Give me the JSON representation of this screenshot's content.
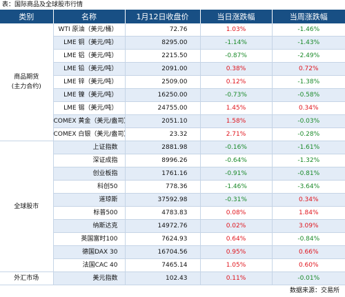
{
  "caption": "表：国际商品及全球股市行情",
  "headers": [
    "类别",
    "名称",
    "1月12日收盘价",
    "当日涨跌幅",
    "当周涨跌幅"
  ],
  "groups": [
    {
      "category": "商品期货\n(主力合约)",
      "rows": [
        {
          "name": "WTI 原油（美元/桶）",
          "price": "72.76",
          "day": "1.03%",
          "week": "-1.46%"
        },
        {
          "name": "LME 铜（美元/吨）",
          "price": "8295.00",
          "day": "-1.14%",
          "week": "-1.43%"
        },
        {
          "name": "LME 铝（美元/吨）",
          "price": "2215.50",
          "day": "-0.87%",
          "week": "-2.49%"
        },
        {
          "name": "LME 铅（美元/吨）",
          "price": "2091.00",
          "day": "0.38%",
          "week": "0.72%"
        },
        {
          "name": "LME 锌（美元/吨）",
          "price": "2509.00",
          "day": "0.12%",
          "week": "-1.38%"
        },
        {
          "name": "LME 镍（美元/吨）",
          "price": "16250.00",
          "day": "-0.73%",
          "week": "-0.58%"
        },
        {
          "name": "LME 锡（美元/吨）",
          "price": "24755.00",
          "day": "1.45%",
          "week": "0.34%"
        },
        {
          "name": "COMEX 黄金（美元/盎司）",
          "price": "2051.10",
          "day": "1.58%",
          "week": "-0.03%"
        },
        {
          "name": "COMEX 白银（美元/盎司）",
          "price": "23.32",
          "day": "2.71%",
          "week": "-0.28%"
        }
      ]
    },
    {
      "category": "全球股市",
      "rows": [
        {
          "name": "上证指数",
          "price": "2881.98",
          "day": "-0.16%",
          "week": "-1.61%"
        },
        {
          "name": "深证成指",
          "price": "8996.26",
          "day": "-0.64%",
          "week": "-1.32%"
        },
        {
          "name": "创业板指",
          "price": "1761.16",
          "day": "-0.91%",
          "week": "-0.81%"
        },
        {
          "name": "科创50",
          "price": "778.36",
          "day": "-1.46%",
          "week": "-3.64%"
        },
        {
          "name": "道琼斯",
          "price": "37592.98",
          "day": "-0.31%",
          "week": "0.34%"
        },
        {
          "name": "标普500",
          "price": "4783.83",
          "day": "0.08%",
          "week": "1.84%"
        },
        {
          "name": "纳斯达克",
          "price": "14972.76",
          "day": "0.02%",
          "week": "3.09%"
        },
        {
          "name": "英国富时100",
          "price": "7624.93",
          "day": "0.64%",
          "week": "-0.84%"
        },
        {
          "name": "德国DAX 30",
          "price": "16704.56",
          "day": "0.95%",
          "week": "0.66%"
        },
        {
          "name": "法国CAC 40",
          "price": "7465.14",
          "day": "1.05%",
          "week": "0.60%"
        }
      ]
    },
    {
      "category": "外汇市场",
      "rows": [
        {
          "name": "美元指数",
          "price": "102.43",
          "day": "0.11%",
          "week": "-0.01%"
        }
      ]
    }
  ],
  "footer": "数据来源：交易所",
  "colors": {
    "header_bg": "#184f84",
    "up": "#e0141c",
    "down": "#1b8a2a",
    "stripe": "#e3ecf7"
  }
}
